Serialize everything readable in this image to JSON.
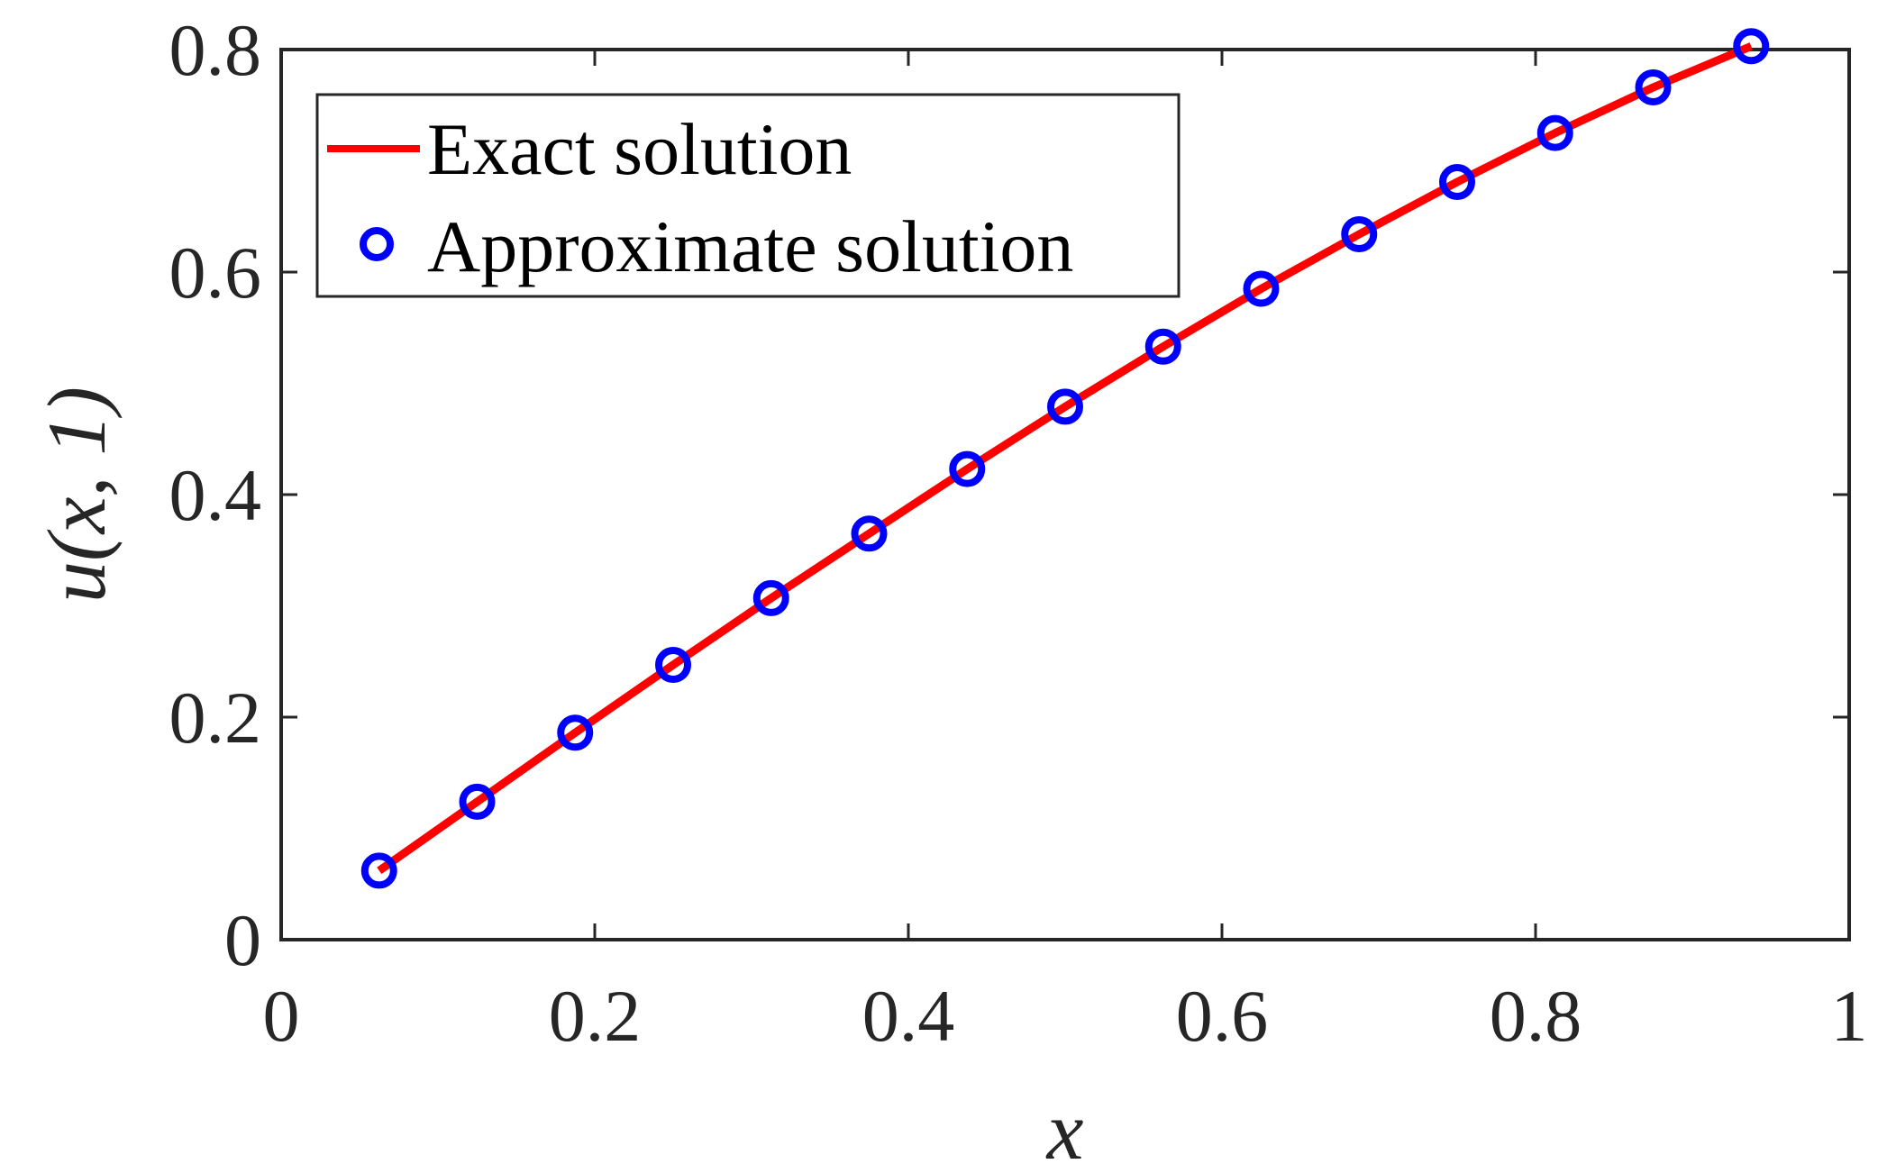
{
  "chart_data": {
    "type": "line",
    "xlabel": "x",
    "ylabel": "u(x, 1)",
    "xlim": [
      0,
      1
    ],
    "ylim": [
      0,
      0.8
    ],
    "xticks": [
      0,
      0.2,
      0.4,
      0.6,
      0.8,
      1
    ],
    "xtick_labels": [
      "0",
      "0.2",
      "0.4",
      "0.6",
      "0.8",
      "1"
    ],
    "yticks": [
      0,
      0.2,
      0.4,
      0.6,
      0.8
    ],
    "ytick_labels": [
      "0",
      "0.2",
      "0.4",
      "0.6",
      "0.8"
    ],
    "grid": false,
    "legend_position": "top-left",
    "series": [
      {
        "name": "Exact solution",
        "style": "line",
        "color": "#ff0000",
        "x": [
          0.0625,
          0.125,
          0.1875,
          0.25,
          0.3125,
          0.375,
          0.4375,
          0.5,
          0.5625,
          0.625,
          0.6875,
          0.75,
          0.8125,
          0.875,
          0.9375
        ],
        "y": [
          0.062,
          0.124,
          0.186,
          0.247,
          0.307,
          0.365,
          0.423,
          0.479,
          0.533,
          0.585,
          0.634,
          0.681,
          0.725,
          0.766,
          0.803
        ]
      },
      {
        "name": "Approximate solution",
        "style": "marker",
        "marker": "circle",
        "color": "#0000ff",
        "x": [
          0.0625,
          0.125,
          0.1875,
          0.25,
          0.3125,
          0.375,
          0.4375,
          0.5,
          0.5625,
          0.625,
          0.6875,
          0.75,
          0.8125,
          0.875,
          0.9375
        ],
        "y": [
          0.062,
          0.124,
          0.186,
          0.247,
          0.307,
          0.365,
          0.423,
          0.479,
          0.533,
          0.585,
          0.634,
          0.681,
          0.725,
          0.766,
          0.803
        ]
      }
    ]
  }
}
